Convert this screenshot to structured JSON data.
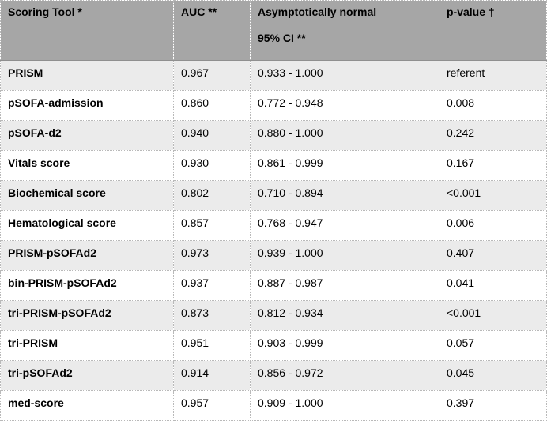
{
  "table": {
    "headers": {
      "tool": "Scoring Tool *",
      "auc": "AUC **",
      "ci_line1": "Asymptotically normal",
      "ci_line2": "95% CI **",
      "pvalue": "p-value †"
    },
    "rows": [
      {
        "tool": "PRISM",
        "auc": "0.967",
        "ci": "0.933 - 1.000",
        "p": "referent"
      },
      {
        "tool": "pSOFA-admission",
        "auc": "0.860",
        "ci": "0.772 - 0.948",
        "p": "0.008"
      },
      {
        "tool": "pSOFA-d2",
        "auc": "0.940",
        "ci": "0.880 - 1.000",
        "p": "0.242"
      },
      {
        "tool": "Vitals score",
        "auc": "0.930",
        "ci": "0.861 - 0.999",
        "p": "0.167"
      },
      {
        "tool": "Biochemical score",
        "auc": "0.802",
        "ci": "0.710 - 0.894",
        "p": "<0.001"
      },
      {
        "tool": "Hematological score",
        "auc": "0.857",
        "ci": "0.768 - 0.947",
        "p": "0.006"
      },
      {
        "tool": "PRISM-pSOFAd2",
        "auc": "0.973",
        "ci": "0.939 - 1.000",
        "p": "0.407"
      },
      {
        "tool": "bin-PRISM-pSOFAd2",
        "auc": "0.937",
        "ci": "0.887 - 0.987",
        "p": "0.041"
      },
      {
        "tool": "tri-PRISM-pSOFAd2",
        "auc": "0.873",
        "ci": "0.812 - 0.934",
        "p": "<0.001"
      },
      {
        "tool": "tri-PRISM",
        "auc": "0.951",
        "ci": "0.903 - 0.999",
        "p": "0.057"
      },
      {
        "tool": "tri-pSOFAd2",
        "auc": "0.914",
        "ci": "0.856 - 0.972",
        "p": "0.045"
      },
      {
        "tool": "med-score",
        "auc": "0.957",
        "ci": "0.909 - 1.000",
        "p": "0.397"
      }
    ]
  }
}
